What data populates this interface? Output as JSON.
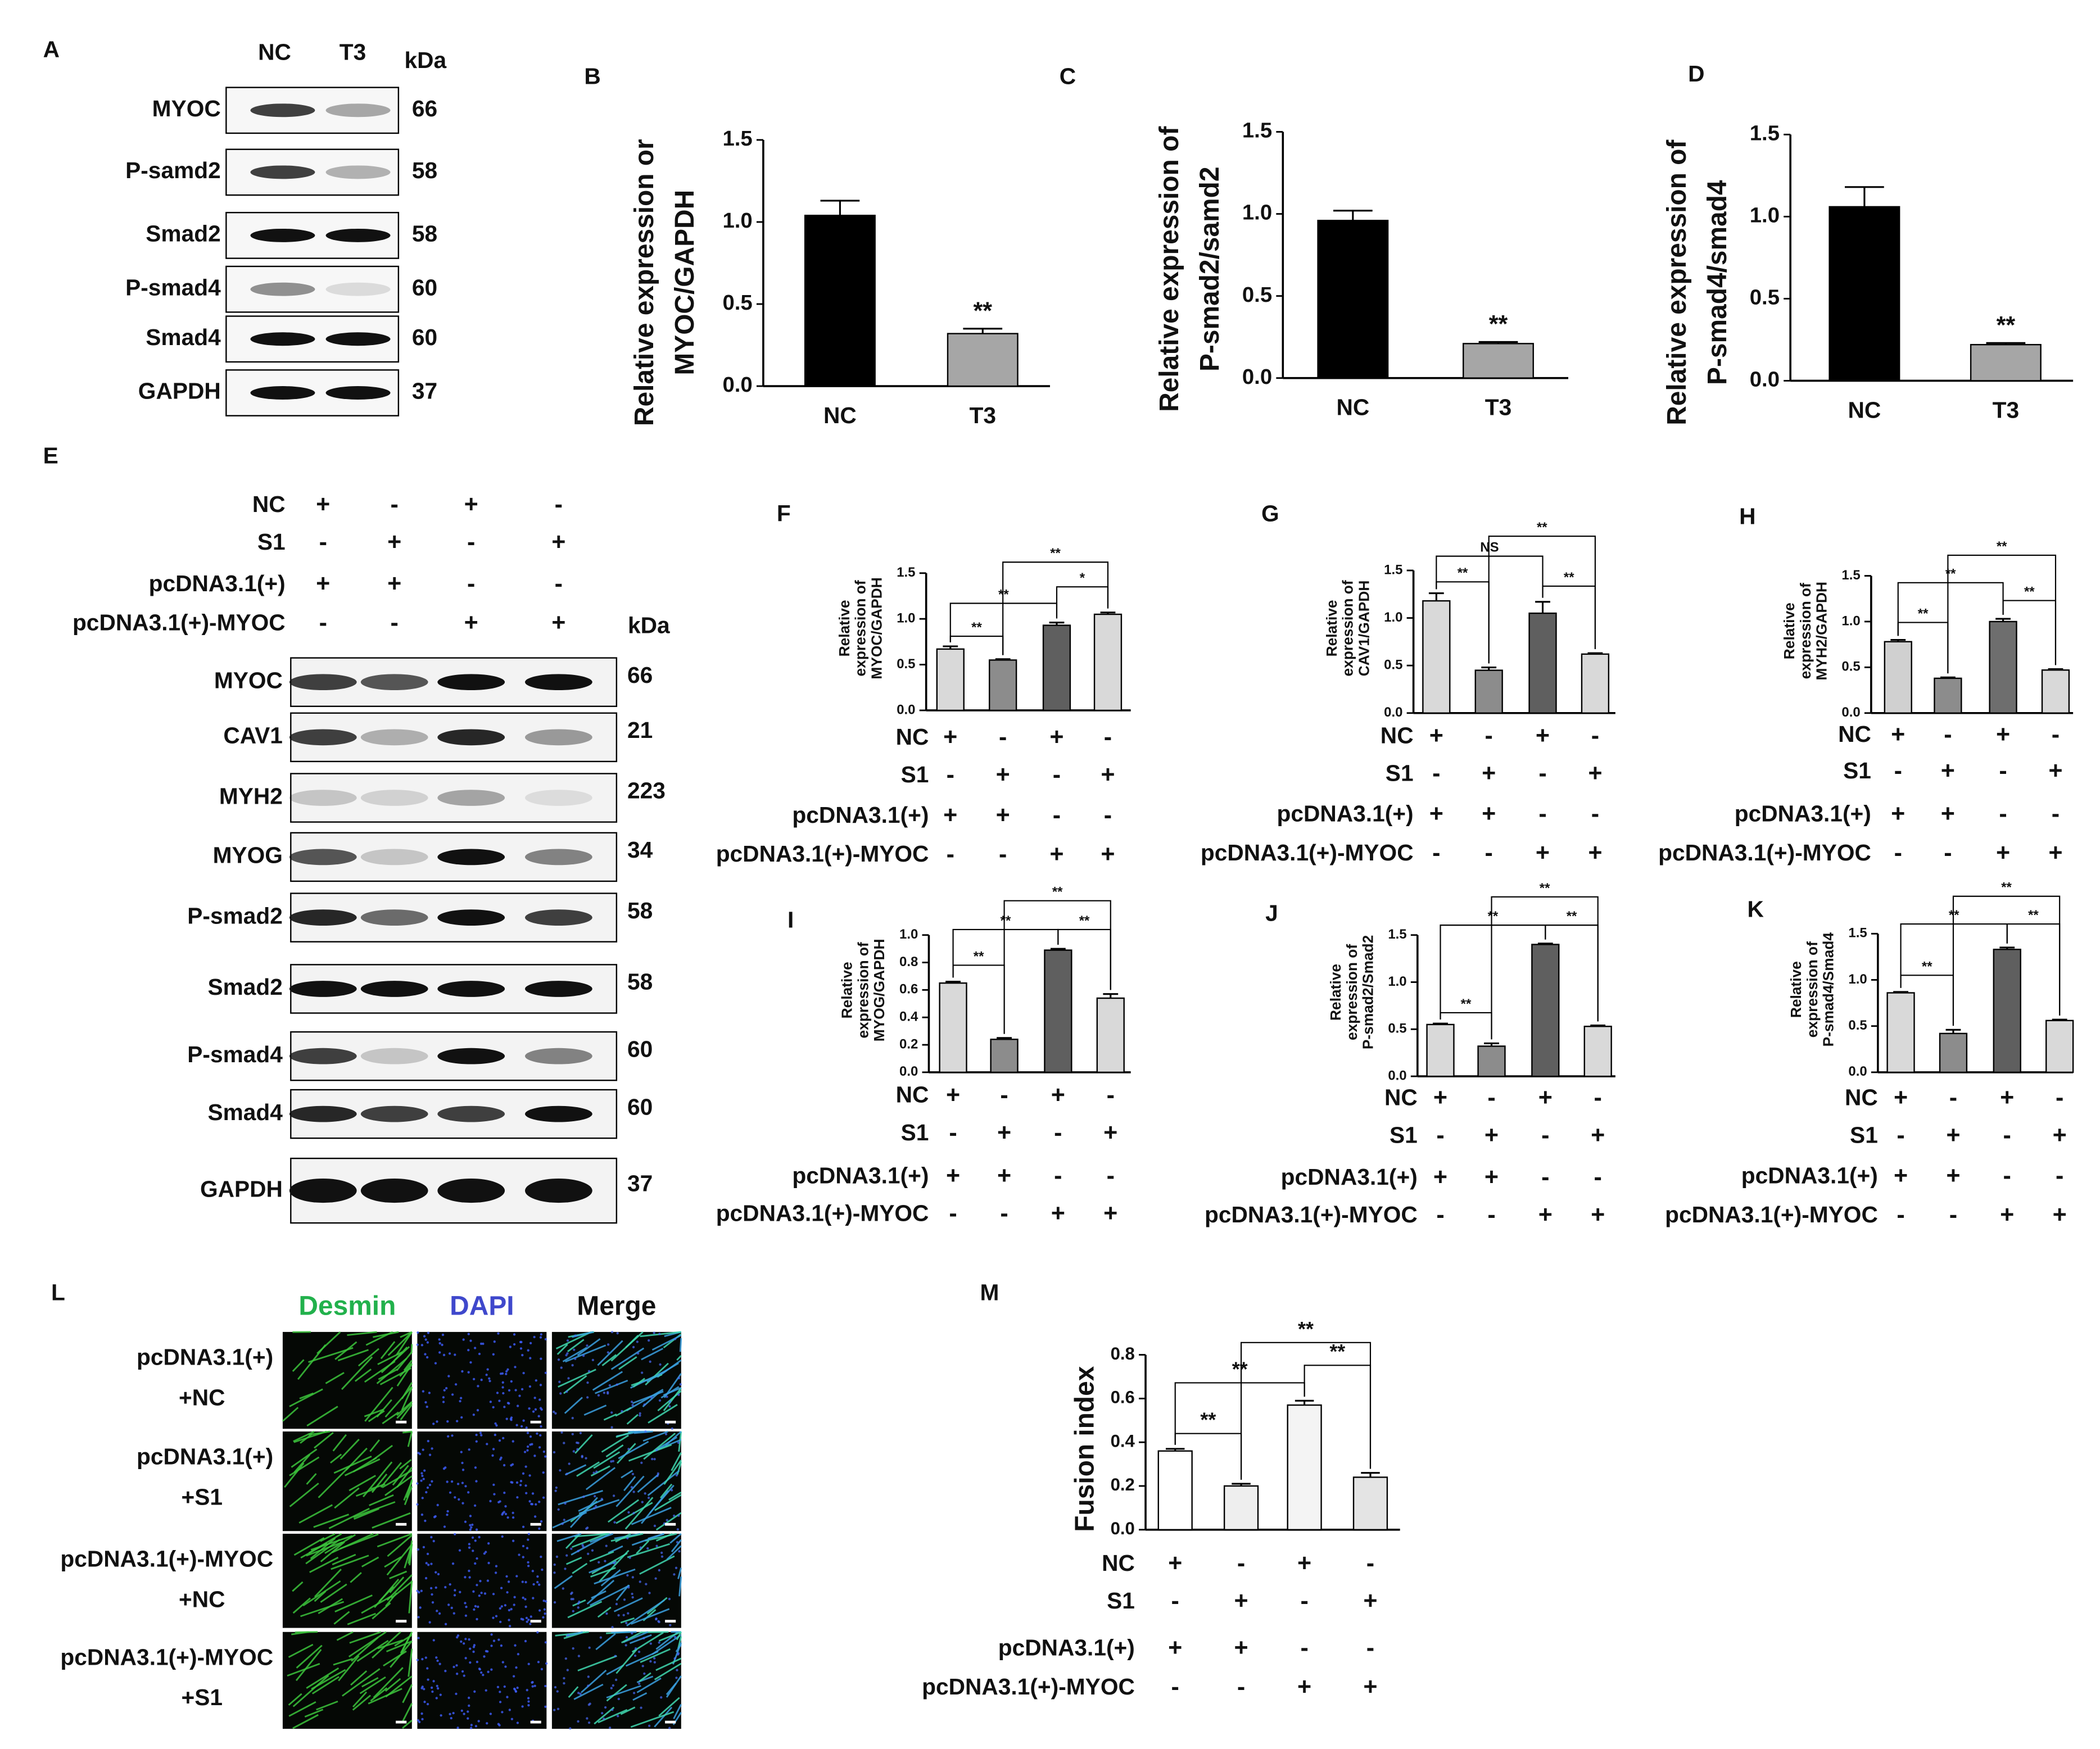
{
  "chart_data": [
    {
      "type": "bar",
      "label": "B",
      "ylabel": [
        "Relative expression or",
        "MYOC/GAPDH"
      ],
      "categories": [
        "NC",
        "T3"
      ],
      "values": [
        1.04,
        0.32
      ],
      "errors": [
        0.09,
        0.03
      ],
      "colors": [
        "#000000",
        "#a6a6a6"
      ],
      "ylim": [
        0,
        1.5
      ],
      "yticks": [
        {
          "value": 0,
          "label": "0.0"
        },
        0.5,
        {
          "value": 1,
          "label": "1.0"
        },
        1.5
      ],
      "significance": [
        "**"
      ]
    },
    {
      "type": "bar",
      "label": "C",
      "ylabel": [
        "Relative expression of",
        "P-smad2/samd2"
      ],
      "categories": [
        "NC",
        "T3"
      ],
      "values": [
        0.96,
        0.21
      ],
      "errors": [
        0.06,
        0.01
      ],
      "colors": [
        "#000000",
        "#a6a6a6"
      ],
      "ylim": [
        0,
        1.5
      ],
      "yticks": [
        {
          "value": 0,
          "label": "0.0"
        },
        0.5,
        {
          "value": 1,
          "label": "1.0"
        },
        1.5
      ],
      "significance": [
        "**"
      ]
    },
    {
      "type": "bar",
      "label": "D",
      "ylabel": [
        "Relative expression of",
        "P-smad4/smad4"
      ],
      "categories": [
        "NC",
        "T3"
      ],
      "values": [
        1.06,
        0.22
      ],
      "errors": [
        0.12,
        0.01
      ],
      "colors": [
        "#000000",
        "#a6a6a6"
      ],
      "ylim": [
        0,
        1.5
      ],
      "yticks": [
        {
          "value": 0,
          "label": "0.0"
        },
        0.5,
        {
          "value": 1,
          "label": "1.0"
        },
        1.5
      ],
      "significance": [
        "**"
      ]
    },
    {
      "type": "bar",
      "label": "F",
      "ylabel": [
        "Relative",
        "expression of",
        "MYOC/GAPDH"
      ],
      "values": [
        0.67,
        0.55,
        0.93,
        1.05
      ],
      "errors": [
        0.03,
        0.01,
        0.03,
        0.02
      ],
      "colors": [
        "#d9d9d9",
        "#8c8c8c",
        "#5f5f5f",
        "#d9d9d9"
      ],
      "ylim": [
        0,
        1.5
      ],
      "yticks": [
        {
          "value": 0,
          "label": "0.0"
        },
        0.5,
        {
          "value": 1,
          "label": "1.0"
        },
        1.5
      ],
      "significance": [
        "**",
        "**",
        "**",
        "*"
      ],
      "conditions": [
        {
          "name": "NC",
          "signs": [
            "+",
            "-",
            "+",
            "-"
          ]
        },
        {
          "name": "S1",
          "signs": [
            "-",
            "+",
            "-",
            "+"
          ]
        },
        {
          "name": "pcDNA3.1(+)",
          "signs": [
            "+",
            "+",
            "-",
            "-"
          ]
        },
        {
          "name": "pcDNA3.1(+)-MYOC",
          "signs": [
            "-",
            "-",
            "+",
            "+"
          ]
        }
      ]
    },
    {
      "type": "bar",
      "label": "G",
      "ylabel": [
        "Relative",
        "expression of",
        "CAV1/GAPDH"
      ],
      "values": [
        1.18,
        0.45,
        1.05,
        0.62
      ],
      "errors": [
        0.08,
        0.03,
        0.12,
        0.01
      ],
      "colors": [
        "#d9d9d9",
        "#8c8c8c",
        "#5f5f5f",
        "#d9d9d9"
      ],
      "ylim": [
        0,
        1.5
      ],
      "yticks": [
        {
          "value": 0,
          "label": "0.0"
        },
        0.5,
        {
          "value": 1,
          "label": "1.0"
        },
        1.5
      ],
      "significance": [
        "**",
        "NS",
        "**",
        "**"
      ],
      "conditions": [
        {
          "name": "NC",
          "signs": [
            "+",
            "-",
            "+",
            "-"
          ]
        },
        {
          "name": "S1",
          "signs": [
            "-",
            "+",
            "-",
            "+"
          ]
        },
        {
          "name": "pcDNA3.1(+)",
          "signs": [
            "+",
            "+",
            "-",
            "-"
          ]
        },
        {
          "name": "pcDNA3.1(+)-MYOC",
          "signs": [
            "-",
            "-",
            "+",
            "+"
          ]
        }
      ]
    },
    {
      "type": "bar",
      "label": "H",
      "ylabel": [
        "Relative",
        "expression of",
        "MYH2/GAPDH"
      ],
      "values": [
        0.78,
        0.38,
        1.0,
        0.47
      ],
      "errors": [
        0.02,
        0.01,
        0.03,
        0.01
      ],
      "colors": [
        "#d0d0d0",
        "#8c8c8c",
        "#6e6e6e",
        "#d9d9d9"
      ],
      "ylim": [
        0,
        1.5
      ],
      "yticks": [
        {
          "value": 0,
          "label": "0.0"
        },
        0.5,
        {
          "value": 1,
          "label": "1.0"
        },
        1.5
      ],
      "significance": [
        "**",
        "**",
        "**",
        "**"
      ],
      "conditions": [
        {
          "name": "NC",
          "signs": [
            "+",
            "-",
            "+",
            "-"
          ]
        },
        {
          "name": "S1",
          "signs": [
            "-",
            "+",
            "-",
            "+"
          ]
        },
        {
          "name": "pcDNA3.1(+)",
          "signs": [
            "+",
            "+",
            "-",
            "-"
          ]
        },
        {
          "name": "pcDNA3.1(+)-MYOC",
          "signs": [
            "-",
            "-",
            "+",
            "+"
          ]
        }
      ]
    },
    {
      "type": "bar",
      "label": "I",
      "ylabel": [
        "Relative",
        "expression of",
        "MYOG/GAPDH"
      ],
      "values": [
        0.65,
        0.24,
        0.89,
        0.54
      ],
      "errors": [
        0.01,
        0.01,
        0.01,
        0.03
      ],
      "colors": [
        "#d9d9d9",
        "#8c8c8c",
        "#5f5f5f",
        "#d9d9d9"
      ],
      "ylim": [
        0,
        1
      ],
      "yticks": [
        {
          "value": 0,
          "label": "0.0"
        },
        0.2,
        0.4,
        0.6,
        0.8,
        {
          "value": 1,
          "label": "1.0"
        }
      ],
      "significance": [
        "**",
        "**",
        "**",
        "**"
      ],
      "conditions": [
        {
          "name": "NC",
          "signs": [
            "+",
            "-",
            "+",
            "-"
          ]
        },
        {
          "name": "S1",
          "signs": [
            "-",
            "+",
            "-",
            "+"
          ]
        },
        {
          "name": "pcDNA3.1(+)",
          "signs": [
            "+",
            "+",
            "-",
            "-"
          ]
        },
        {
          "name": "pcDNA3.1(+)-MYOC",
          "signs": [
            "-",
            "-",
            "+",
            "+"
          ]
        }
      ]
    },
    {
      "type": "bar",
      "label": "J",
      "ylabel": [
        "Relative",
        "expression of",
        "P-smad2/Smad2"
      ],
      "values": [
        0.55,
        0.32,
        1.4,
        0.53
      ],
      "errors": [
        0.01,
        0.03,
        0.01,
        0.01
      ],
      "colors": [
        "#d9d9d9",
        "#8c8c8c",
        "#5f5f5f",
        "#d9d9d9"
      ],
      "ylim": [
        0,
        1.5
      ],
      "yticks": [
        {
          "value": 0,
          "label": "0.0"
        },
        0.5,
        {
          "value": 1,
          "label": "1.0"
        },
        1.5
      ],
      "significance": [
        "**",
        "**",
        "**",
        "**"
      ],
      "conditions": [
        {
          "name": "NC",
          "signs": [
            "+",
            "-",
            "+",
            "-"
          ]
        },
        {
          "name": "S1",
          "signs": [
            "-",
            "+",
            "-",
            "+"
          ]
        },
        {
          "name": "pcDNA3.1(+)",
          "signs": [
            "+",
            "+",
            "-",
            "-"
          ]
        },
        {
          "name": "pcDNA3.1(+)-MYOC",
          "signs": [
            "-",
            "-",
            "+",
            "+"
          ]
        }
      ]
    },
    {
      "type": "bar",
      "label": "K",
      "ylabel": [
        "Relative",
        "expression of",
        "P-smad4/Smad4"
      ],
      "values": [
        0.86,
        0.42,
        1.33,
        0.56
      ],
      "errors": [
        0.01,
        0.04,
        0.02,
        0.01
      ],
      "colors": [
        "#d9d9d9",
        "#8c8c8c",
        "#5f5f5f",
        "#d9d9d9"
      ],
      "ylim": [
        0,
        1.5
      ],
      "yticks": [
        {
          "value": 0,
          "label": "0.0"
        },
        0.5,
        {
          "value": 1,
          "label": "1.0"
        },
        1.5
      ],
      "significance": [
        "**",
        "**",
        "**",
        "**"
      ],
      "conditions": [
        {
          "name": "NC",
          "signs": [
            "+",
            "-",
            "+",
            "-"
          ]
        },
        {
          "name": "S1",
          "signs": [
            "-",
            "+",
            "-",
            "+"
          ]
        },
        {
          "name": "pcDNA3.1(+)",
          "signs": [
            "+",
            "+",
            "-",
            "-"
          ]
        },
        {
          "name": "pcDNA3.1(+)-MYOC",
          "signs": [
            "-",
            "-",
            "+",
            "+"
          ]
        }
      ]
    },
    {
      "type": "bar",
      "label": "M",
      "ylabel": [
        "Fusion index"
      ],
      "values": [
        0.36,
        0.2,
        0.57,
        0.24
      ],
      "errors": [
        0.01,
        0.01,
        0.02,
        0.02
      ],
      "colors": [
        "#ffffff",
        "#eeeeee",
        "#f4f4f4",
        "#e4e4e4"
      ],
      "ylim": [
        0,
        0.8
      ],
      "yticks": [
        {
          "value": 0,
          "label": "0.0"
        },
        0.2,
        0.4,
        0.6,
        0.8
      ],
      "significance": [
        "**",
        "**",
        "**",
        "**"
      ],
      "conditions": [
        {
          "name": "NC",
          "signs": [
            "+",
            "-",
            "+",
            "-"
          ]
        },
        {
          "name": "S1",
          "signs": [
            "-",
            "+",
            "-",
            "+"
          ]
        },
        {
          "name": "pcDNA3.1(+)",
          "signs": [
            "+",
            "+",
            "-",
            "-"
          ]
        },
        {
          "name": "pcDNA3.1(+)-MYOC",
          "signs": [
            "-",
            "-",
            "+",
            "+"
          ]
        }
      ]
    }
  ],
  "blot_A": {
    "label": "A",
    "lanes": [
      "NC",
      "T3"
    ],
    "unit": "kDa",
    "rows": [
      {
        "name": "MYOC",
        "kda": 66
      },
      {
        "name": "P-samd2",
        "kda": 58
      },
      {
        "name": "Smad2",
        "kda": 58
      },
      {
        "name": "P-smad4",
        "kda": 60
      },
      {
        "name": "Smad4",
        "kda": 60
      },
      {
        "name": "GAPDH",
        "kda": 37
      }
    ]
  },
  "blot_E": {
    "label": "E",
    "unit": "kDa",
    "conditions": [
      {
        "name": "NC",
        "signs": [
          "+",
          "-",
          "+",
          "-"
        ]
      },
      {
        "name": "S1",
        "signs": [
          "-",
          "+",
          "-",
          "+"
        ]
      },
      {
        "name": "pcDNA3.1(+)",
        "signs": [
          "+",
          "+",
          "-",
          "-"
        ]
      },
      {
        "name": "pcDNA3.1(+)-MYOC",
        "signs": [
          "-",
          "-",
          "+",
          "+"
        ]
      }
    ],
    "rows": [
      {
        "name": "MYOC",
        "kda": 66
      },
      {
        "name": "CAV1",
        "kda": 21
      },
      {
        "name": "MYH2",
        "kda": 223
      },
      {
        "name": "MYOG",
        "kda": 34
      },
      {
        "name": "P-smad2",
        "kda": 58
      },
      {
        "name": "Smad2",
        "kda": 58
      },
      {
        "name": "P-smad4",
        "kda": 60
      },
      {
        "name": "Smad4",
        "kda": 60
      },
      {
        "name": "GAPDH",
        "kda": 37
      }
    ]
  },
  "panel_L": {
    "label": "L",
    "columns": [
      "Desmin",
      "DAPI",
      "Merge"
    ],
    "rows": [
      [
        "pcDNA3.1(+)",
        "+NC"
      ],
      [
        "pcDNA3.1(+)",
        "+S1"
      ],
      [
        "pcDNA3.1(+)-MYOC",
        "+NC"
      ],
      [
        "pcDNA3.1(+)-MYOC",
        "+S1"
      ]
    ]
  }
}
